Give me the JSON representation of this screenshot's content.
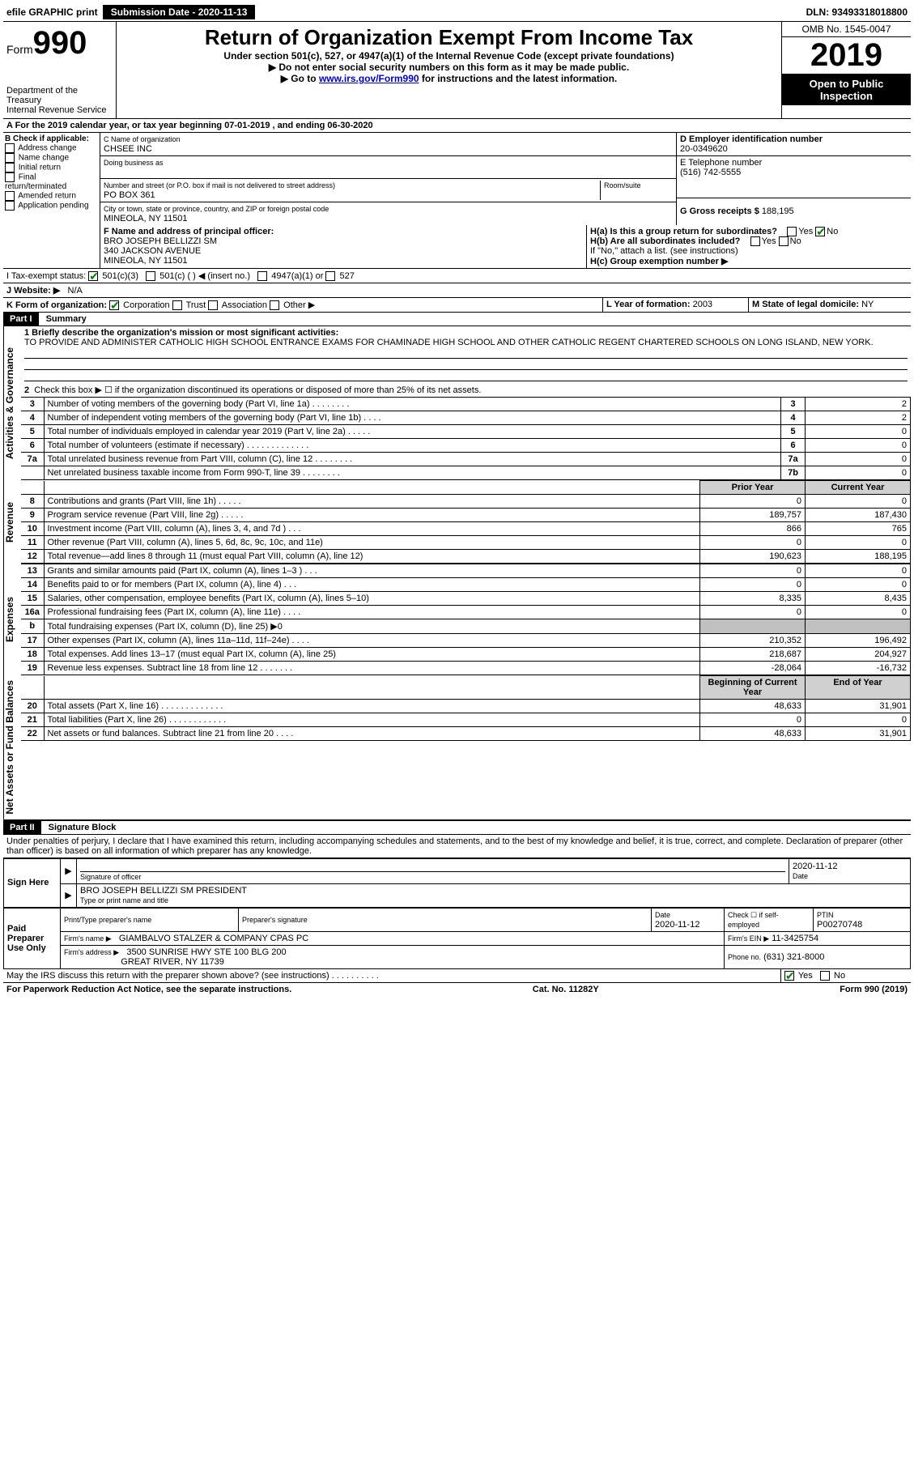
{
  "topbar": {
    "efile": "efile GRAPHIC print",
    "subdate_label": "Submission Date - 2020-11-13",
    "dln": "DLN: 93493318018800"
  },
  "header": {
    "form_word": "Form",
    "form_num": "990",
    "dept": "Department of the Treasury\nInternal Revenue Service",
    "title": "Return of Organization Exempt From Income Tax",
    "sub1": "Under section 501(c), 527, or 4947(a)(1) of the Internal Revenue Code (except private foundations)",
    "sub2": "▶ Do not enter social security numbers on this form as it may be made public.",
    "sub3_pre": "▶ Go to ",
    "sub3_link": "www.irs.gov/Form990",
    "sub3_post": " for instructions and the latest information.",
    "omb": "OMB No. 1545-0047",
    "year": "2019",
    "openpub": "Open to Public Inspection"
  },
  "line_a": "A For the 2019 calendar year, or tax year beginning 07-01-2019   , and ending 06-30-2020",
  "blockB": {
    "label": "B Check if applicable:",
    "opts": [
      "Address change",
      "Name change",
      "Initial return",
      "Final return/terminated",
      "Amended return",
      "Application pending"
    ]
  },
  "blockC": {
    "name_label": "C Name of organization",
    "name": "CHSEE INC",
    "dba_label": "Doing business as",
    "addr_label": "Number and street (or P.O. box if mail is not delivered to street address)",
    "room_label": "Room/suite",
    "addr": "PO BOX 361",
    "city_label": "City or town, state or province, country, and ZIP or foreign postal code",
    "city": "MINEOLA, NY  11501"
  },
  "blockD": {
    "label": "D Employer identification number",
    "val": "20-0349620"
  },
  "blockE": {
    "label": "E Telephone number",
    "val": "(516) 742-5555"
  },
  "blockG": {
    "label": "G Gross receipts $",
    "val": "188,195"
  },
  "blockF": {
    "label": "F  Name and address of principal officer:",
    "line1": "BRO JOSEPH BELLIZZI SM",
    "line2": "340 JACKSON AVENUE",
    "line3": "MINEOLA, NY  11501"
  },
  "blockH": {
    "ha": "H(a)  Is this a group return for subordinates?",
    "hb": "H(b)  Are all subordinates included?",
    "hb_note": "If \"No,\" attach a list. (see instructions)",
    "hc": "H(c)  Group exemption number ▶",
    "yes": "Yes",
    "no": "No"
  },
  "blockI": {
    "label": "I   Tax-exempt status:",
    "o1": "501(c)(3)",
    "o2": "501(c) (  ) ◀ (insert no.)",
    "o3": "4947(a)(1) or",
    "o4": "527"
  },
  "blockJ": {
    "label": "J   Website: ▶",
    "val": "N/A"
  },
  "blockK": {
    "label": "K Form of organization:",
    "o1": "Corporation",
    "o2": "Trust",
    "o3": "Association",
    "o4": "Other ▶"
  },
  "blockL": {
    "label": "L Year of formation:",
    "val": "2003"
  },
  "blockM": {
    "label": "M State of legal domicile:",
    "val": "NY"
  },
  "part1": {
    "hdr": "Part I",
    "title": "Summary",
    "l1": "1  Briefly describe the organization's mission or most significant activities:",
    "l1_text": "TO PROVIDE AND ADMINISTER CATHOLIC HIGH SCHOOL ENTRANCE EXAMS FOR CHAMINADE HIGH SCHOOL AND OTHER CATHOLIC REGENT CHARTERED SCHOOLS ON LONG ISLAND, NEW YORK.",
    "l2": "Check this box ▶ ☐  if the organization discontinued its operations or disposed of more than 25% of its net assets.",
    "sides": {
      "ag": "Activities & Governance",
      "rev": "Revenue",
      "exp": "Expenses",
      "na": "Net Assets or Fund Balances"
    },
    "rows_ag": [
      {
        "n": "3",
        "d": "Number of voting members of the governing body (Part VI, line 1a)  .   .   .   .   .   .   .   .",
        "b": "3",
        "v": "2"
      },
      {
        "n": "4",
        "d": "Number of independent voting members of the governing body (Part VI, line 1b)  .   .   .   .",
        "b": "4",
        "v": "2"
      },
      {
        "n": "5",
        "d": "Total number of individuals employed in calendar year 2019 (Part V, line 2a)  .   .   .   .   .",
        "b": "5",
        "v": "0"
      },
      {
        "n": "6",
        "d": "Total number of volunteers (estimate if necessary)   .   .   .   .   .   .   .   .   .   .   .   .   .",
        "b": "6",
        "v": "0"
      },
      {
        "n": "7a",
        "d": "Total unrelated business revenue from Part VIII, column (C), line 12  .   .   .   .   .   .   .   .",
        "b": "7a",
        "v": "0"
      },
      {
        "n": "",
        "d": "Net unrelated business taxable income from Form 990-T, line 39   .   .   .   .   .   .   .   .",
        "b": "7b",
        "v": "0"
      }
    ],
    "col_hdr_prior": "Prior Year",
    "col_hdr_curr": "Current Year",
    "rows_rev": [
      {
        "n": "8",
        "d": "Contributions and grants (Part VIII, line 1h)   .   .   .   .   .",
        "p": "0",
        "c": "0"
      },
      {
        "n": "9",
        "d": "Program service revenue (Part VIII, line 2g)   .   .   .   .   .",
        "p": "189,757",
        "c": "187,430"
      },
      {
        "n": "10",
        "d": "Investment income (Part VIII, column (A), lines 3, 4, and 7d )   .   .   .",
        "p": "866",
        "c": "765"
      },
      {
        "n": "11",
        "d": "Other revenue (Part VIII, column (A), lines 5, 6d, 8c, 9c, 10c, and 11e)",
        "p": "0",
        "c": "0"
      },
      {
        "n": "12",
        "d": "Total revenue—add lines 8 through 11 (must equal Part VIII, column (A), line 12)",
        "p": "190,623",
        "c": "188,195"
      }
    ],
    "rows_exp": [
      {
        "n": "13",
        "d": "Grants and similar amounts paid (Part IX, column (A), lines 1–3 )   .   .   .",
        "p": "0",
        "c": "0"
      },
      {
        "n": "14",
        "d": "Benefits paid to or for members (Part IX, column (A), line 4)   .   .   .",
        "p": "0",
        "c": "0"
      },
      {
        "n": "15",
        "d": "Salaries, other compensation, employee benefits (Part IX, column (A), lines 5–10)",
        "p": "8,335",
        "c": "8,435"
      },
      {
        "n": "16a",
        "d": "Professional fundraising fees (Part IX, column (A), line 11e)   .   .   .   .",
        "p": "0",
        "c": "0"
      },
      {
        "n": "b",
        "d": "Total fundraising expenses (Part IX, column (D), line 25) ▶0",
        "p": "",
        "c": "",
        "grey": true
      },
      {
        "n": "17",
        "d": "Other expenses (Part IX, column (A), lines 11a–11d, 11f–24e)   .   .   .   .",
        "p": "210,352",
        "c": "196,492"
      },
      {
        "n": "18",
        "d": "Total expenses. Add lines 13–17 (must equal Part IX, column (A), line 25)",
        "p": "218,687",
        "c": "204,927"
      },
      {
        "n": "19",
        "d": "Revenue less expenses. Subtract line 18 from line 12  .   .   .   .   .   .   .",
        "p": "-28,064",
        "c": "-16,732"
      }
    ],
    "col_hdr_begin": "Beginning of Current Year",
    "col_hdr_end": "End of Year",
    "rows_na": [
      {
        "n": "20",
        "d": "Total assets (Part X, line 16)  .   .   .   .   .   .   .   .   .   .   .   .   .",
        "p": "48,633",
        "c": "31,901"
      },
      {
        "n": "21",
        "d": "Total liabilities (Part X, line 26)  .   .   .   .   .   .   .   .   .   .   .   .",
        "p": "0",
        "c": "0"
      },
      {
        "n": "22",
        "d": "Net assets or fund balances. Subtract line 21 from line 20   .   .   .   .",
        "p": "48,633",
        "c": "31,901"
      }
    ]
  },
  "part2": {
    "hdr": "Part II",
    "title": "Signature Block",
    "decl": "Under penalties of perjury, I declare that I have examined this return, including accompanying schedules and statements, and to the best of my knowledge and belief, it is true, correct, and complete. Declaration of preparer (other than officer) is based on all information of which preparer has any knowledge.",
    "sign_here": "Sign Here",
    "sig_officer": "Signature of officer",
    "sig_date": "2020-11-12",
    "date_label": "Date",
    "typed_name": "BRO JOSEPH BELLIZZI SM  PRESIDENT",
    "typed_label": "Type or print name and title",
    "paid": "Paid Preparer Use Only",
    "prep_name_label": "Print/Type preparer's name",
    "prep_sig_label": "Preparer's signature",
    "prep_date_label": "Date",
    "prep_date": "2020-11-12",
    "self_emp": "Check ☐ if self-employed",
    "ptin_label": "PTIN",
    "ptin": "P00270748",
    "firm_name_label": "Firm's name    ▶",
    "firm_name": "GIAMBALVO STALZER & COMPANY CPAS PC",
    "firm_ein_label": "Firm's EIN ▶",
    "firm_ein": "11-3425754",
    "firm_addr_label": "Firm's address ▶",
    "firm_addr1": "3500 SUNRISE HWY STE 100 BLG 200",
    "firm_addr2": "GREAT RIVER, NY  11739",
    "phone_label": "Phone no.",
    "phone": "(631) 321-8000",
    "discuss": "May the IRS discuss this return with the preparer shown above? (see instructions)   .   .   .   .   .   .   .   .   .   .",
    "yes": "Yes",
    "no": "No"
  },
  "footer": {
    "left": "For Paperwork Reduction Act Notice, see the separate instructions.",
    "mid": "Cat. No. 11282Y",
    "right": "Form 990 (2019)"
  }
}
